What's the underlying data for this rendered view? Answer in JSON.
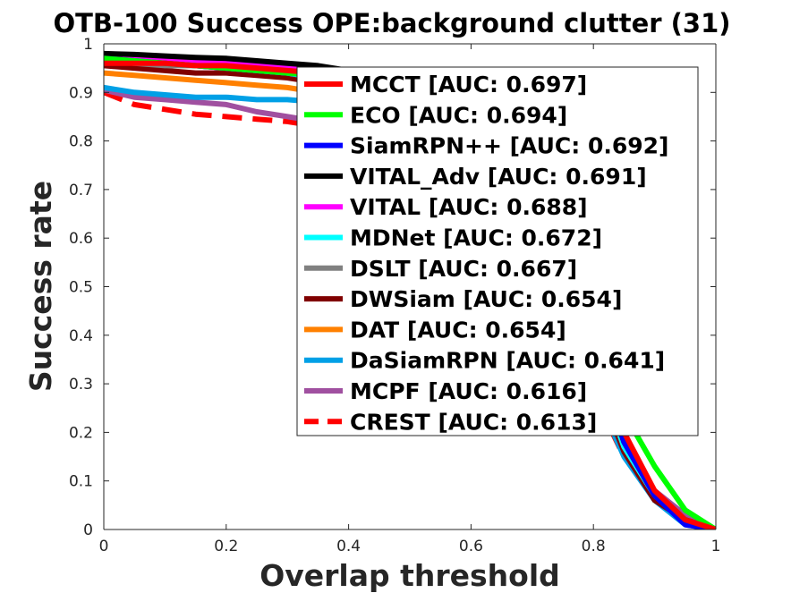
{
  "chart_data": {
    "type": "line",
    "title": "OTB-100 Success OPE:background clutter (31)",
    "xlabel": "Overlap threshold",
    "ylabel": "Success rate",
    "xlim": [
      0,
      1
    ],
    "ylim": [
      0,
      1
    ],
    "x_ticks": [
      "0",
      "0.2",
      "0.4",
      "0.6",
      "0.8",
      "1"
    ],
    "y_ticks": [
      "0",
      "0.1",
      "0.2",
      "0.3",
      "0.4",
      "0.5",
      "0.6",
      "0.7",
      "0.8",
      "0.9",
      "1"
    ],
    "grid": false,
    "legend_position": "top-right",
    "x": [
      0,
      0.05,
      0.1,
      0.15,
      0.2,
      0.25,
      0.3,
      0.35,
      0.4,
      0.45,
      0.5,
      0.55,
      0.6,
      0.65,
      0.7,
      0.75,
      0.8,
      0.85,
      0.9,
      0.95,
      1.0
    ],
    "series": [
      {
        "name": "MCCT [AUC: 0.697]",
        "color": "#ff0000",
        "dash": false,
        "values": [
          0.96,
          0.96,
          0.96,
          0.955,
          0.955,
          0.95,
          0.945,
          0.94,
          0.93,
          0.92,
          0.9,
          0.88,
          0.85,
          0.8,
          0.72,
          0.58,
          0.38,
          0.2,
          0.08,
          0.02,
          0.0
        ]
      },
      {
        "name": "ECO [AUC: 0.694]",
        "color": "#00ff00",
        "dash": false,
        "values": [
          0.97,
          0.965,
          0.96,
          0.955,
          0.95,
          0.945,
          0.94,
          0.935,
          0.93,
          0.92,
          0.9,
          0.88,
          0.85,
          0.8,
          0.71,
          0.57,
          0.38,
          0.24,
          0.13,
          0.04,
          0.0
        ]
      },
      {
        "name": "SiamRPN++ [AUC: 0.692]",
        "color": "#0000ff",
        "dash": false,
        "values": [
          0.97,
          0.965,
          0.96,
          0.955,
          0.95,
          0.945,
          0.94,
          0.935,
          0.93,
          0.92,
          0.9,
          0.88,
          0.85,
          0.8,
          0.72,
          0.58,
          0.37,
          0.18,
          0.07,
          0.01,
          0.0
        ]
      },
      {
        "name": "VITAL_Adv [AUC: 0.691]",
        "color": "#000000",
        "dash": false,
        "values": [
          0.98,
          0.978,
          0.975,
          0.972,
          0.97,
          0.965,
          0.96,
          0.955,
          0.945,
          0.93,
          0.91,
          0.89,
          0.86,
          0.81,
          0.72,
          0.57,
          0.36,
          0.18,
          0.07,
          0.02,
          0.0
        ]
      },
      {
        "name": "VITAL [AUC: 0.688]",
        "color": "#ff00ff",
        "dash": false,
        "values": [
          0.975,
          0.972,
          0.97,
          0.965,
          0.96,
          0.955,
          0.95,
          0.945,
          0.935,
          0.92,
          0.9,
          0.88,
          0.85,
          0.8,
          0.71,
          0.56,
          0.36,
          0.18,
          0.07,
          0.02,
          0.0
        ]
      },
      {
        "name": "MDNet [AUC: 0.672]",
        "color": "#00ffff",
        "dash": false,
        "values": [
          0.97,
          0.965,
          0.96,
          0.955,
          0.95,
          0.945,
          0.94,
          0.93,
          0.92,
          0.9,
          0.88,
          0.85,
          0.82,
          0.77,
          0.68,
          0.54,
          0.35,
          0.17,
          0.07,
          0.02,
          0.0
        ]
      },
      {
        "name": "DSLT [AUC: 0.667]",
        "color": "#808080",
        "dash": false,
        "values": [
          0.965,
          0.96,
          0.955,
          0.955,
          0.95,
          0.945,
          0.94,
          0.93,
          0.92,
          0.9,
          0.88,
          0.85,
          0.81,
          0.76,
          0.67,
          0.53,
          0.34,
          0.17,
          0.07,
          0.02,
          0.0
        ]
      },
      {
        "name": "DWSiam [AUC: 0.654]",
        "color": "#800000",
        "dash": false,
        "values": [
          0.955,
          0.95,
          0.945,
          0.94,
          0.94,
          0.935,
          0.93,
          0.92,
          0.91,
          0.89,
          0.86,
          0.83,
          0.79,
          0.73,
          0.64,
          0.5,
          0.32,
          0.16,
          0.06,
          0.02,
          0.0
        ]
      },
      {
        "name": "DAT [AUC: 0.654]",
        "color": "#ff8000",
        "dash": false,
        "values": [
          0.94,
          0.935,
          0.93,
          0.925,
          0.92,
          0.915,
          0.91,
          0.9,
          0.89,
          0.87,
          0.85,
          0.82,
          0.78,
          0.72,
          0.64,
          0.5,
          0.33,
          0.17,
          0.07,
          0.02,
          0.0
        ]
      },
      {
        "name": "DaSiamRPN [AUC: 0.641]",
        "color": "#00a0e6",
        "dash": false,
        "values": [
          0.91,
          0.9,
          0.895,
          0.89,
          0.89,
          0.885,
          0.885,
          0.88,
          0.87,
          0.85,
          0.83,
          0.8,
          0.76,
          0.7,
          0.61,
          0.47,
          0.29,
          0.15,
          0.06,
          0.01,
          0.0
        ]
      },
      {
        "name": "MCPF [AUC: 0.616]",
        "color": "#a050a0",
        "dash": false,
        "values": [
          0.905,
          0.89,
          0.885,
          0.88,
          0.875,
          0.86,
          0.85,
          0.84,
          0.83,
          0.81,
          0.79,
          0.76,
          0.72,
          0.66,
          0.58,
          0.45,
          0.3,
          0.17,
          0.08,
          0.03,
          0.0
        ]
      },
      {
        "name": "CREST [AUC: 0.613]",
        "color": "#ff0000",
        "dash": true,
        "values": [
          0.9,
          0.875,
          0.865,
          0.855,
          0.85,
          0.845,
          0.84,
          0.83,
          0.82,
          0.8,
          0.78,
          0.75,
          0.71,
          0.65,
          0.57,
          0.44,
          0.28,
          0.15,
          0.07,
          0.03,
          0.0
        ]
      }
    ]
  }
}
